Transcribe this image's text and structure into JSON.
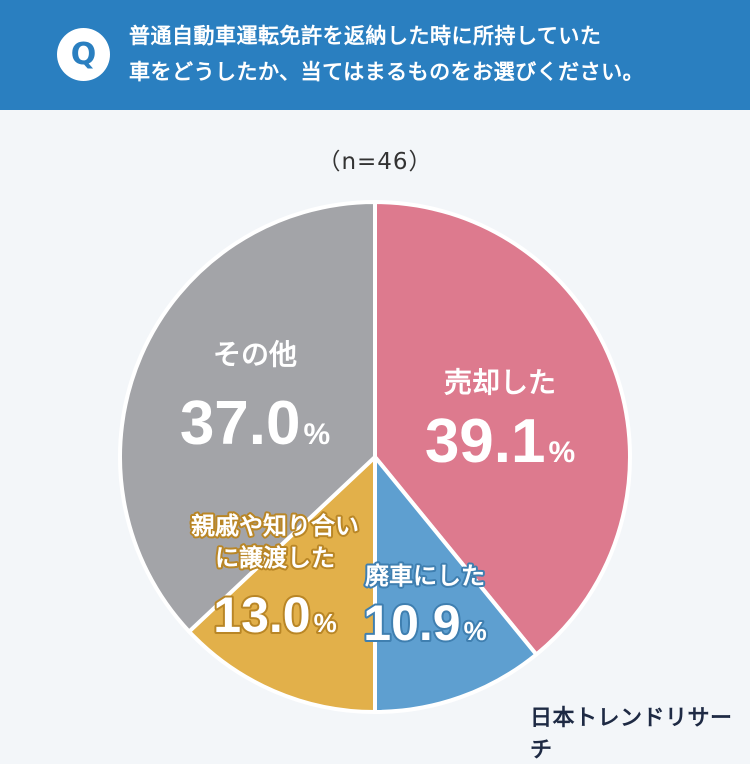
{
  "header": {
    "q_badge": "Q",
    "question_line1": "普通自動車運転免許を返納した時に所持していた",
    "question_line2": "車をどうしたか、当てはまるものをお選びください。"
  },
  "n_label": "（n=46）",
  "logo": "日本トレンドリサーチ",
  "chart_data": {
    "type": "pie",
    "title": "",
    "slices": [
      {
        "label": "売却した",
        "value": 39.1,
        "value_text": "39.1",
        "unit": "%",
        "color": "#dd7a8e",
        "label_color": "#ffffff"
      },
      {
        "label": "廃車にした",
        "value": 10.9,
        "value_text": "10.9",
        "unit": "%",
        "color": "#5e9fd0",
        "label_color": "#ffffff"
      },
      {
        "label": "親戚や知り合いに譲渡した",
        "label_lines": [
          "親戚や知り合い",
          "に譲渡した"
        ],
        "value": 13.0,
        "value_text": "13.0",
        "unit": "%",
        "color": "#e2b04a",
        "label_color": "#ffffff"
      },
      {
        "label": "その他",
        "value": 37.0,
        "value_text": "37.0",
        "unit": "%",
        "color": "#a3a4a8",
        "label_color": "#ffffff"
      }
    ]
  }
}
